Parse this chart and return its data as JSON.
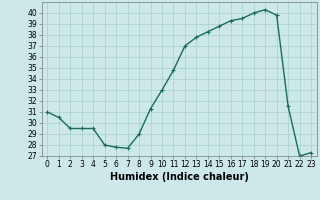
{
  "x": [
    0,
    1,
    2,
    3,
    4,
    5,
    6,
    7,
    8,
    9,
    10,
    11,
    12,
    13,
    14,
    15,
    16,
    17,
    18,
    19,
    20,
    21,
    22,
    23
  ],
  "y": [
    31,
    30.5,
    29.5,
    29.5,
    29.5,
    28,
    27.8,
    27.7,
    29,
    31.3,
    33,
    34.8,
    37,
    37.8,
    38.3,
    38.8,
    39.3,
    39.5,
    40,
    40.3,
    39.8,
    31.5,
    27,
    27.3
  ],
  "line_color": "#1a6b5e",
  "marker": "+",
  "marker_size": 3,
  "line_width": 1.0,
  "bg_color": "#cce8e8",
  "grid_color": "#aacece",
  "xlabel": "Humidex (Indice chaleur)",
  "xlabel_fontsize": 7,
  "tick_fontsize": 5.5,
  "ylim": [
    27,
    41
  ],
  "xlim": [
    -0.5,
    23.5
  ],
  "yticks": [
    27,
    28,
    29,
    30,
    31,
    32,
    33,
    34,
    35,
    36,
    37,
    38,
    39,
    40
  ],
  "xticks": [
    0,
    1,
    2,
    3,
    4,
    5,
    6,
    7,
    8,
    9,
    10,
    11,
    12,
    13,
    14,
    15,
    16,
    17,
    18,
    19,
    20,
    21,
    22,
    23
  ]
}
